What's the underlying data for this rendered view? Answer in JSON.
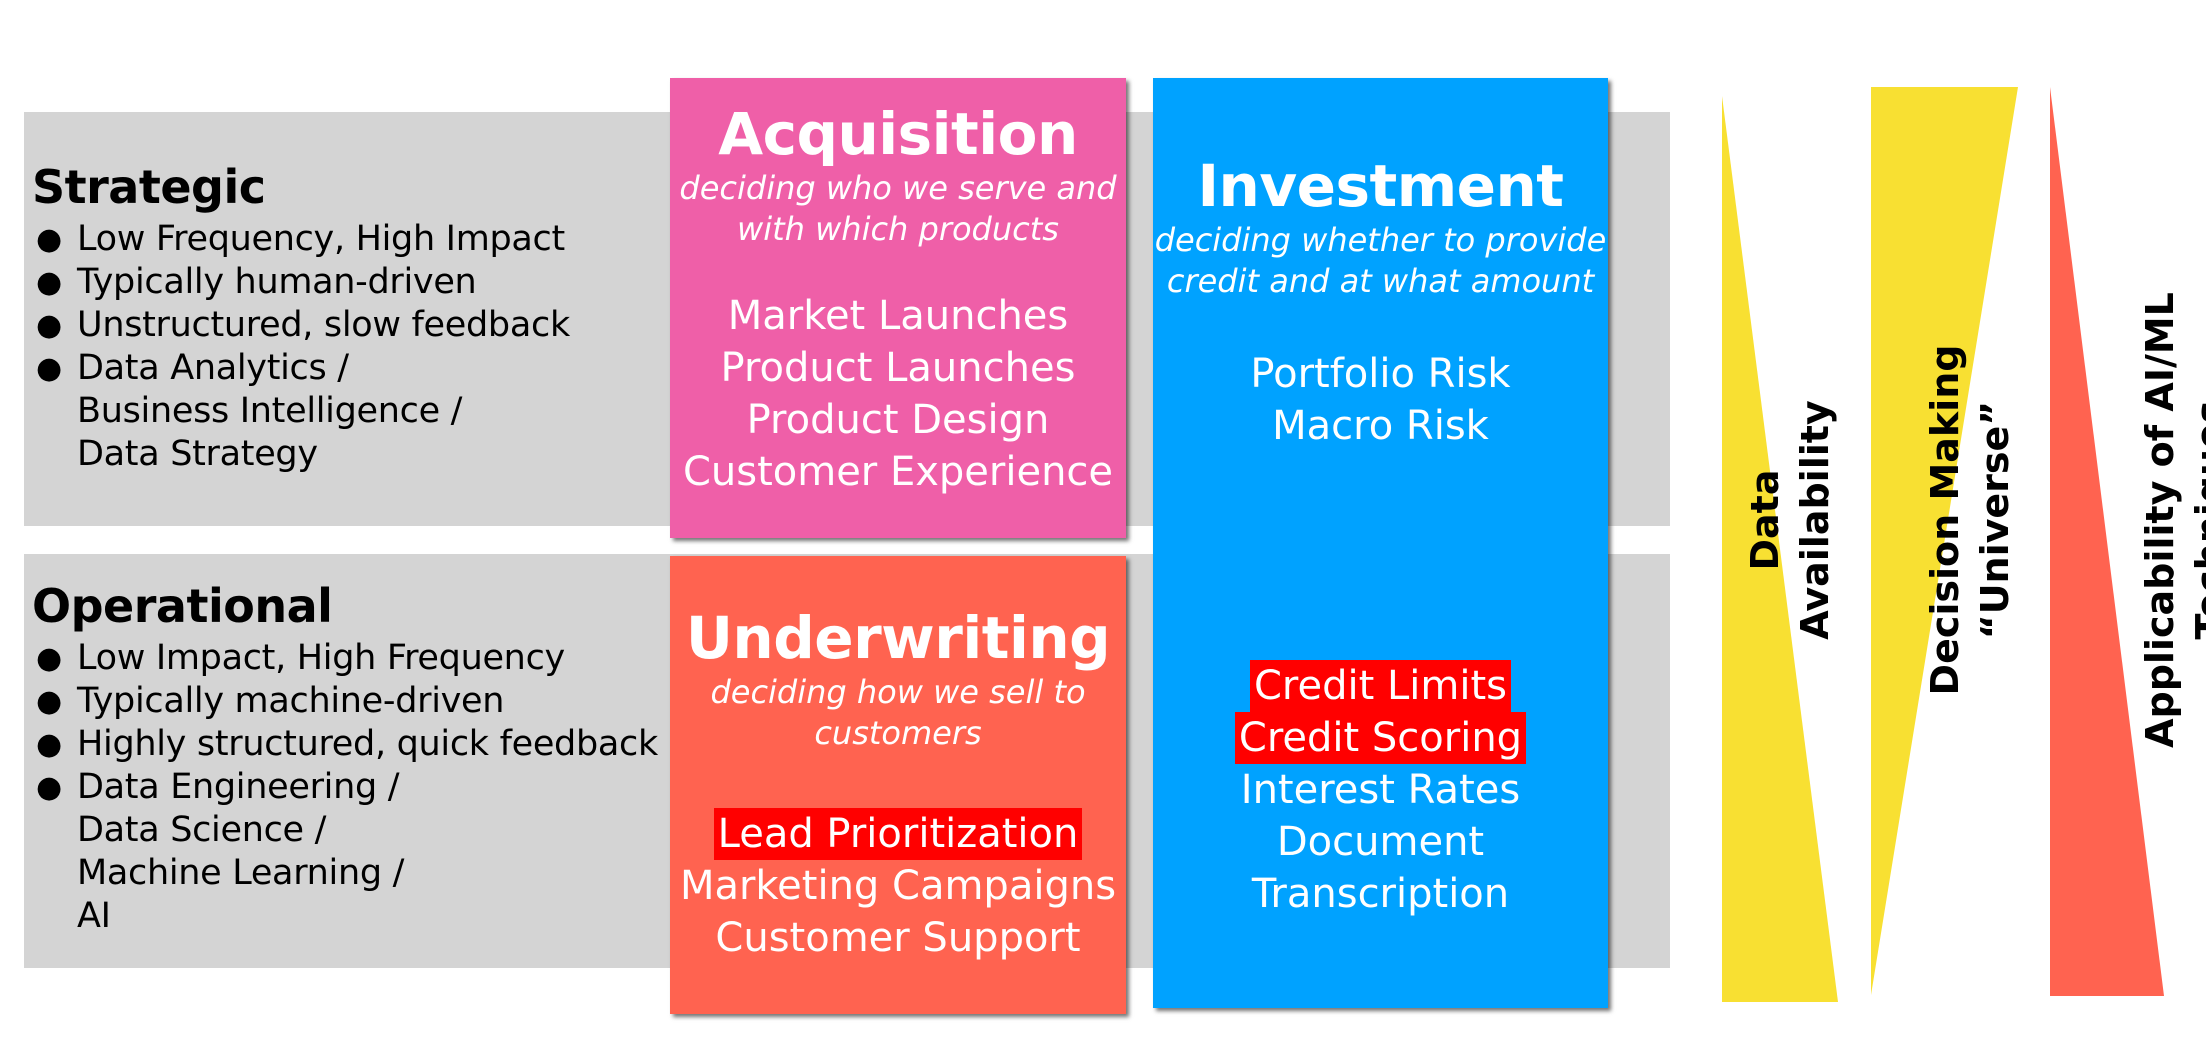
{
  "strategic": {
    "title": "Strategic",
    "bullets": [
      [
        "Low Frequency, High Impact"
      ],
      [
        "Typically human-driven"
      ],
      [
        "Unstructured, slow feedback"
      ],
      [
        "Data Analytics /",
        "Business Intelligence /",
        "Data Strategy"
      ]
    ]
  },
  "operational": {
    "title": "Operational",
    "bullets": [
      [
        "Low Impact, High Frequency"
      ],
      [
        "Typically machine-driven"
      ],
      [
        "Highly structured, quick feedback"
      ],
      [
        "Data Engineering /",
        "Data Science /",
        "Machine Learning /",
        "AI"
      ]
    ]
  },
  "acquisition": {
    "title": "Acquisition",
    "subtitle": [
      "deciding who we serve and",
      "with which products"
    ],
    "items": [
      "Market Launches",
      "Product Launches",
      "Product Design",
      "Customer Experience"
    ]
  },
  "underwriting": {
    "title": "Underwriting",
    "subtitle": [
      "deciding how we sell to",
      "customers"
    ],
    "items": [
      "Lead Prioritization",
      "Marketing Campaigns",
      "Customer Support"
    ],
    "highlighted": [
      "Lead Prioritization"
    ]
  },
  "investment": {
    "title": "Investment",
    "subtitle": [
      "deciding whether to provide",
      "credit and at what amount"
    ],
    "items_top": [
      "Portfolio Risk",
      "Macro Risk"
    ],
    "items_bottom": [
      "Credit Limits",
      "Credit Scoring",
      "Interest Rates",
      "Document",
      "Transcription"
    ],
    "highlighted": [
      "Credit Limits",
      "Credit Scoring"
    ]
  },
  "indicators": {
    "data_availability": [
      "Data",
      "Availability"
    ],
    "decision_making": [
      "Decision Making",
      "“Universe”"
    ],
    "ai_ml": [
      "Applicability of AI/ML",
      "Techniques"
    ]
  },
  "colors": {
    "band": "#d4d4d4",
    "acquisition": "#ef5fa8",
    "underwriting": "#ff6350",
    "investment": "#00a2ff",
    "highlight": "#ff0000",
    "yellow": "#f8e032",
    "coral": "#ff6350"
  }
}
